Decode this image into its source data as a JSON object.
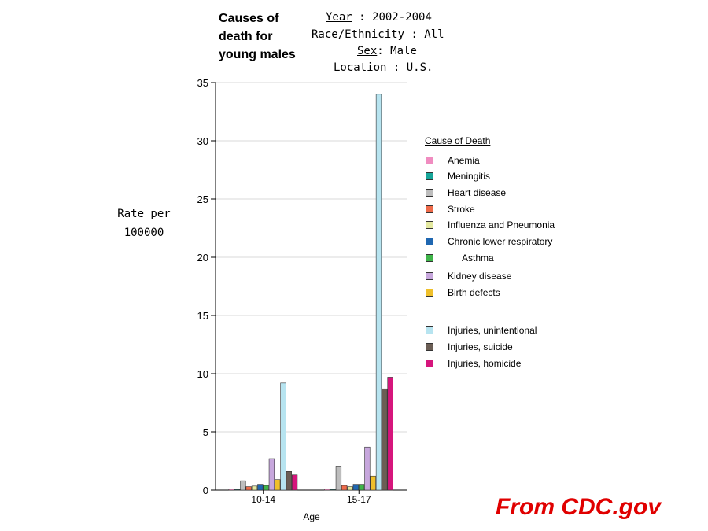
{
  "header": {
    "title": "Causes of death for young males",
    "year_key": "Year",
    "year_val": ": 2002-2004",
    "race_key": "Race/Ethnicity",
    "race_val": ": All",
    "sex_key": "Sex",
    "sex_val": ": Male",
    "loc_key": "Location",
    "loc_val": ": U.S."
  },
  "source": "From CDC.gov",
  "chart_data": {
    "type": "bar",
    "xlabel": "Age",
    "ylabel": "Rate per 100000",
    "ylim": [
      0,
      35
    ],
    "yticks": [
      0,
      5,
      10,
      15,
      20,
      25,
      30,
      35
    ],
    "grid": true,
    "legend_title": "Cause of Death",
    "legend_position": "right",
    "categories": [
      "10-14",
      "15-17"
    ],
    "series": [
      {
        "name": "Anemia",
        "color": "#f08cc0",
        "values": [
          0.1,
          0.1
        ]
      },
      {
        "name": "Meningitis",
        "color": "#17a69a",
        "values": [
          0.05,
          0.05
        ]
      },
      {
        "name": "Heart disease",
        "color": "#bdbdbd",
        "values": [
          0.8,
          2.0
        ]
      },
      {
        "name": "Stroke",
        "color": "#ef6b4a",
        "values": [
          0.3,
          0.4
        ]
      },
      {
        "name": "Influenza and Pneumonia",
        "color": "#e4e9a0",
        "values": [
          0.35,
          0.3
        ]
      },
      {
        "name": "Chronic lower respiratory",
        "color": "#1f67b1",
        "values": [
          0.5,
          0.5
        ]
      },
      {
        "name": "Asthma",
        "color": "#3fb54a",
        "values": [
          0.4,
          0.5
        ]
      },
      {
        "name": "Kidney disease",
        "color": "#c7a7dd",
        "values": [
          2.7,
          3.7
        ]
      },
      {
        "name": "Birth defects",
        "color": "#efc02b",
        "values": [
          0.9,
          1.2
        ]
      },
      {
        "name": "Injuries, unintentional",
        "color": "#b7e4f0",
        "values": [
          9.2,
          34.0
        ]
      },
      {
        "name": "Injuries, suicide",
        "color": "#6b5e55",
        "values": [
          1.6,
          8.7
        ]
      },
      {
        "name": "Injuries, homicide",
        "color": "#d6157c",
        "values": [
          1.3,
          9.7
        ]
      }
    ]
  }
}
